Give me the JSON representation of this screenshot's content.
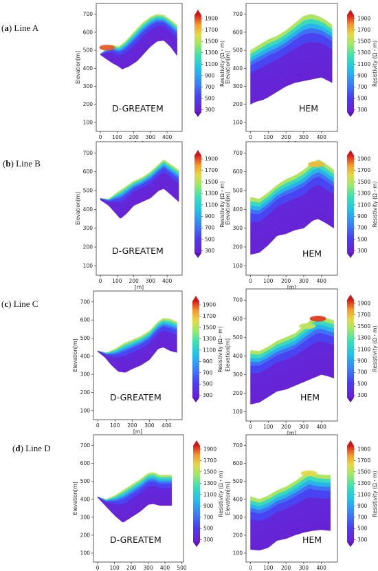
{
  "chart_data": [
    {
      "type": "heatmap",
      "row_label": "(a) Line A",
      "method": "D-GREATEM",
      "ylabel": "Elevation[m]",
      "xlabel": "[m]",
      "x_ticks": [
        0,
        100,
        200,
        300,
        400
      ],
      "y_ticks": [
        100,
        200,
        300,
        400,
        500,
        600,
        700
      ],
      "xlim": [
        -25,
        490
      ],
      "ylim": [
        50,
        760
      ],
      "colorbar_label": "Resistivity (Ω・m)",
      "colorbar_ticks": [
        300,
        500,
        700,
        900,
        1100,
        1300,
        1500,
        1700,
        1900
      ],
      "top": [
        [
          0,
          480
        ],
        [
          30,
          505
        ],
        [
          70,
          530
        ],
        [
          110,
          520
        ],
        [
          150,
          550
        ],
        [
          200,
          600
        ],
        [
          250,
          650
        ],
        [
          300,
          685
        ],
        [
          340,
          700
        ],
        [
          380,
          695
        ],
        [
          420,
          670
        ],
        [
          460,
          640
        ]
      ],
      "bottom": [
        [
          0,
          475
        ],
        [
          30,
          455
        ],
        [
          70,
          430
        ],
        [
          110,
          410
        ],
        [
          130,
          395
        ],
        [
          170,
          410
        ],
        [
          220,
          440
        ],
        [
          260,
          480
        ],
        [
          300,
          520
        ],
        [
          340,
          550
        ],
        [
          380,
          555
        ],
        [
          420,
          520
        ],
        [
          460,
          470
        ]
      ],
      "hot_spots": [
        [
          40,
          515,
          1800
        ]
      ]
    },
    {
      "type": "heatmap",
      "row_label": "",
      "method": "HEM",
      "ylabel": "Elevation[m]",
      "xlabel": "[m]",
      "x_ticks": [
        0,
        100,
        200,
        300,
        400
      ],
      "y_ticks": [
        100,
        200,
        300,
        400,
        500,
        600,
        700
      ],
      "xlim": [
        -25,
        490
      ],
      "ylim": [
        50,
        760
      ],
      "colorbar_label": "Resistivity (Ω・m)",
      "colorbar_ticks": [
        300,
        500,
        700,
        900,
        1100,
        1300,
        1500,
        1700,
        1900
      ],
      "top": [
        [
          0,
          500
        ],
        [
          50,
          530
        ],
        [
          100,
          560
        ],
        [
          150,
          580
        ],
        [
          200,
          610
        ],
        [
          250,
          650
        ],
        [
          300,
          690
        ],
        [
          340,
          700
        ],
        [
          380,
          690
        ],
        [
          420,
          670
        ],
        [
          460,
          640
        ]
      ],
      "bottom": [
        [
          0,
          200
        ],
        [
          30,
          215
        ],
        [
          70,
          225
        ],
        [
          100,
          240
        ],
        [
          150,
          270
        ],
        [
          200,
          300
        ],
        [
          250,
          320
        ],
        [
          300,
          330
        ],
        [
          350,
          340
        ],
        [
          400,
          350
        ],
        [
          460,
          320
        ]
      ],
      "hot_spots": []
    },
    {
      "type": "heatmap",
      "row_label": "(b) Line B",
      "method": "D-GREATEM",
      "ylabel": "Elevation[m]",
      "xlabel": "[m]",
      "x_ticks": [
        0,
        100,
        200,
        300,
        400
      ],
      "y_ticks": [
        100,
        200,
        300,
        400,
        500,
        600,
        700
      ],
      "xlim": [
        -25,
        490
      ],
      "ylim": [
        50,
        760
      ],
      "colorbar_label": "Resistivity (Ω・m)",
      "colorbar_ticks": [
        300,
        500,
        700,
        900,
        1100,
        1300,
        1500,
        1700,
        1900
      ],
      "top": [
        [
          0,
          460
        ],
        [
          50,
          455
        ],
        [
          100,
          490
        ],
        [
          150,
          520
        ],
        [
          200,
          550
        ],
        [
          250,
          570
        ],
        [
          300,
          600
        ],
        [
          350,
          640
        ],
        [
          380,
          665
        ],
        [
          420,
          640
        ],
        [
          470,
          610
        ]
      ],
      "bottom": [
        [
          0,
          450
        ],
        [
          50,
          420
        ],
        [
          90,
          380
        ],
        [
          120,
          350
        ],
        [
          160,
          380
        ],
        [
          200,
          420
        ],
        [
          250,
          440
        ],
        [
          300,
          460
        ],
        [
          350,
          500
        ],
        [
          380,
          510
        ],
        [
          420,
          480
        ],
        [
          470,
          440
        ]
      ],
      "hot_spots": []
    },
    {
      "type": "heatmap",
      "row_label": "",
      "method": "HEM",
      "ylabel": "Elevation[m]",
      "xlabel": "[m]",
      "x_ticks": [
        0,
        100,
        200,
        300,
        400
      ],
      "y_ticks": [
        100,
        200,
        300,
        400,
        500,
        600,
        700
      ],
      "xlim": [
        -25,
        490
      ],
      "ylim": [
        50,
        760
      ],
      "colorbar_label": "Resistivity (Ω・m)",
      "colorbar_ticks": [
        300,
        500,
        700,
        900,
        1100,
        1300,
        1500,
        1700,
        1900
      ],
      "top": [
        [
          0,
          465
        ],
        [
          50,
          455
        ],
        [
          100,
          490
        ],
        [
          150,
          530
        ],
        [
          200,
          560
        ],
        [
          250,
          580
        ],
        [
          300,
          610
        ],
        [
          350,
          650
        ],
        [
          385,
          665
        ],
        [
          420,
          645
        ],
        [
          470,
          610
        ]
      ],
      "bottom": [
        [
          0,
          160
        ],
        [
          50,
          170
        ],
        [
          100,
          210
        ],
        [
          150,
          260
        ],
        [
          200,
          270
        ],
        [
          250,
          290
        ],
        [
          300,
          300
        ],
        [
          350,
          340
        ],
        [
          380,
          350
        ],
        [
          420,
          330
        ],
        [
          470,
          300
        ]
      ],
      "hot_spots": [
        [
          370,
          640,
          1600
        ]
      ]
    },
    {
      "type": "heatmap",
      "row_label": "(c) Line C",
      "method": "D-GREATEM",
      "ylabel": "Elevation[m]",
      "xlabel": "[m]",
      "x_ticks": [
        0,
        100,
        200,
        300,
        400
      ],
      "y_ticks": [
        100,
        200,
        300,
        400,
        500,
        600,
        700
      ],
      "xlim": [
        -25,
        490
      ],
      "ylim": [
        50,
        760
      ],
      "colorbar_label": "Resistivity (Ω・m)",
      "colorbar_ticks": [
        300,
        500,
        700,
        900,
        1100,
        1300,
        1500,
        1700,
        1900
      ],
      "top": [
        [
          0,
          430
        ],
        [
          50,
          420
        ],
        [
          100,
          440
        ],
        [
          150,
          470
        ],
        [
          200,
          490
        ],
        [
          250,
          510
        ],
        [
          300,
          540
        ],
        [
          350,
          590
        ],
        [
          380,
          610
        ],
        [
          420,
          605
        ],
        [
          460,
          590
        ]
      ],
      "bottom": [
        [
          0,
          425
        ],
        [
          40,
          395
        ],
        [
          80,
          350
        ],
        [
          120,
          315
        ],
        [
          160,
          310
        ],
        [
          200,
          330
        ],
        [
          250,
          350
        ],
        [
          300,
          380
        ],
        [
          350,
          440
        ],
        [
          380,
          450
        ],
        [
          420,
          430
        ],
        [
          460,
          420
        ]
      ],
      "hot_spots": []
    },
    {
      "type": "heatmap",
      "row_label": "",
      "method": "HEM",
      "ylabel": "Elevation[m]",
      "xlabel": "[m]",
      "x_ticks": [
        0,
        100,
        200,
        300,
        400
      ],
      "y_ticks": [
        100,
        200,
        300,
        400,
        500,
        600,
        700
      ],
      "xlim": [
        -25,
        490
      ],
      "ylim": [
        50,
        760
      ],
      "colorbar_label": "Resistivity (Ω・m)",
      "colorbar_ticks": [
        300,
        500,
        700,
        900,
        1100,
        1300,
        1500,
        1700,
        1900
      ],
      "top": [
        [
          0,
          430
        ],
        [
          50,
          425
        ],
        [
          100,
          450
        ],
        [
          150,
          480
        ],
        [
          200,
          500
        ],
        [
          250,
          520
        ],
        [
          300,
          560
        ],
        [
          350,
          600
        ],
        [
          380,
          615
        ],
        [
          420,
          605
        ],
        [
          470,
          590
        ]
      ],
      "bottom": [
        [
          0,
          140
        ],
        [
          50,
          150
        ],
        [
          100,
          180
        ],
        [
          150,
          210
        ],
        [
          200,
          220
        ],
        [
          250,
          240
        ],
        [
          300,
          260
        ],
        [
          350,
          280
        ],
        [
          400,
          300
        ],
        [
          440,
          290
        ],
        [
          470,
          280
        ]
      ],
      "hot_spots": [
        [
          380,
          600,
          1850
        ],
        [
          320,
          560,
          1400
        ]
      ]
    },
    {
      "type": "heatmap",
      "row_label": "(d) Line D",
      "method": "D-GREATEM",
      "ylabel": "Elevation[m]",
      "xlabel": "[m]",
      "x_ticks": [
        0,
        100,
        200,
        300,
        400,
        500
      ],
      "y_ticks": [
        100,
        200,
        300,
        400,
        500,
        600,
        700
      ],
      "xlim": [
        -25,
        510
      ],
      "ylim": [
        50,
        760
      ],
      "colorbar_label": "Resistivity (Ω・m)",
      "colorbar_ticks": [
        300,
        500,
        700,
        900,
        1100,
        1300,
        1500,
        1700,
        1900
      ],
      "top": [
        [
          0,
          415
        ],
        [
          50,
          400
        ],
        [
          100,
          420
        ],
        [
          150,
          450
        ],
        [
          200,
          480
        ],
        [
          250,
          510
        ],
        [
          300,
          545
        ],
        [
          330,
          550
        ],
        [
          370,
          535
        ],
        [
          420,
          535
        ],
        [
          440,
          535
        ]
      ],
      "bottom": [
        [
          0,
          410
        ],
        [
          50,
          360
        ],
        [
          100,
          310
        ],
        [
          150,
          270
        ],
        [
          200,
          300
        ],
        [
          250,
          330
        ],
        [
          300,
          370
        ],
        [
          330,
          375
        ],
        [
          370,
          365
        ],
        [
          420,
          365
        ],
        [
          440,
          365
        ]
      ],
      "hot_spots": []
    },
    {
      "type": "heatmap",
      "row_label": "",
      "method": "HEM",
      "ylabel": "Elevation[m]",
      "xlabel": "[m]",
      "x_ticks": [
        0,
        100,
        200,
        300,
        400
      ],
      "y_ticks": [
        100,
        200,
        300,
        400,
        500,
        600,
        700
      ],
      "xlim": [
        -25,
        490
      ],
      "ylim": [
        50,
        760
      ],
      "colorbar_label": "Resistivity (Ω・m)",
      "colorbar_ticks": [
        300,
        500,
        700,
        900,
        1100,
        1300,
        1500,
        1700,
        1900
      ],
      "top": [
        [
          0,
          415
        ],
        [
          50,
          400
        ],
        [
          100,
          420
        ],
        [
          150,
          450
        ],
        [
          200,
          470
        ],
        [
          250,
          500
        ],
        [
          300,
          535
        ],
        [
          330,
          555
        ],
        [
          370,
          540
        ],
        [
          420,
          535
        ],
        [
          450,
          535
        ]
      ],
      "bottom": [
        [
          0,
          120
        ],
        [
          50,
          115
        ],
        [
          100,
          130
        ],
        [
          150,
          170
        ],
        [
          200,
          180
        ],
        [
          250,
          200
        ],
        [
          300,
          215
        ],
        [
          350,
          225
        ],
        [
          400,
          230
        ],
        [
          450,
          225
        ]
      ],
      "hot_spots": [
        [
          330,
          545,
          1500
        ]
      ]
    }
  ]
}
